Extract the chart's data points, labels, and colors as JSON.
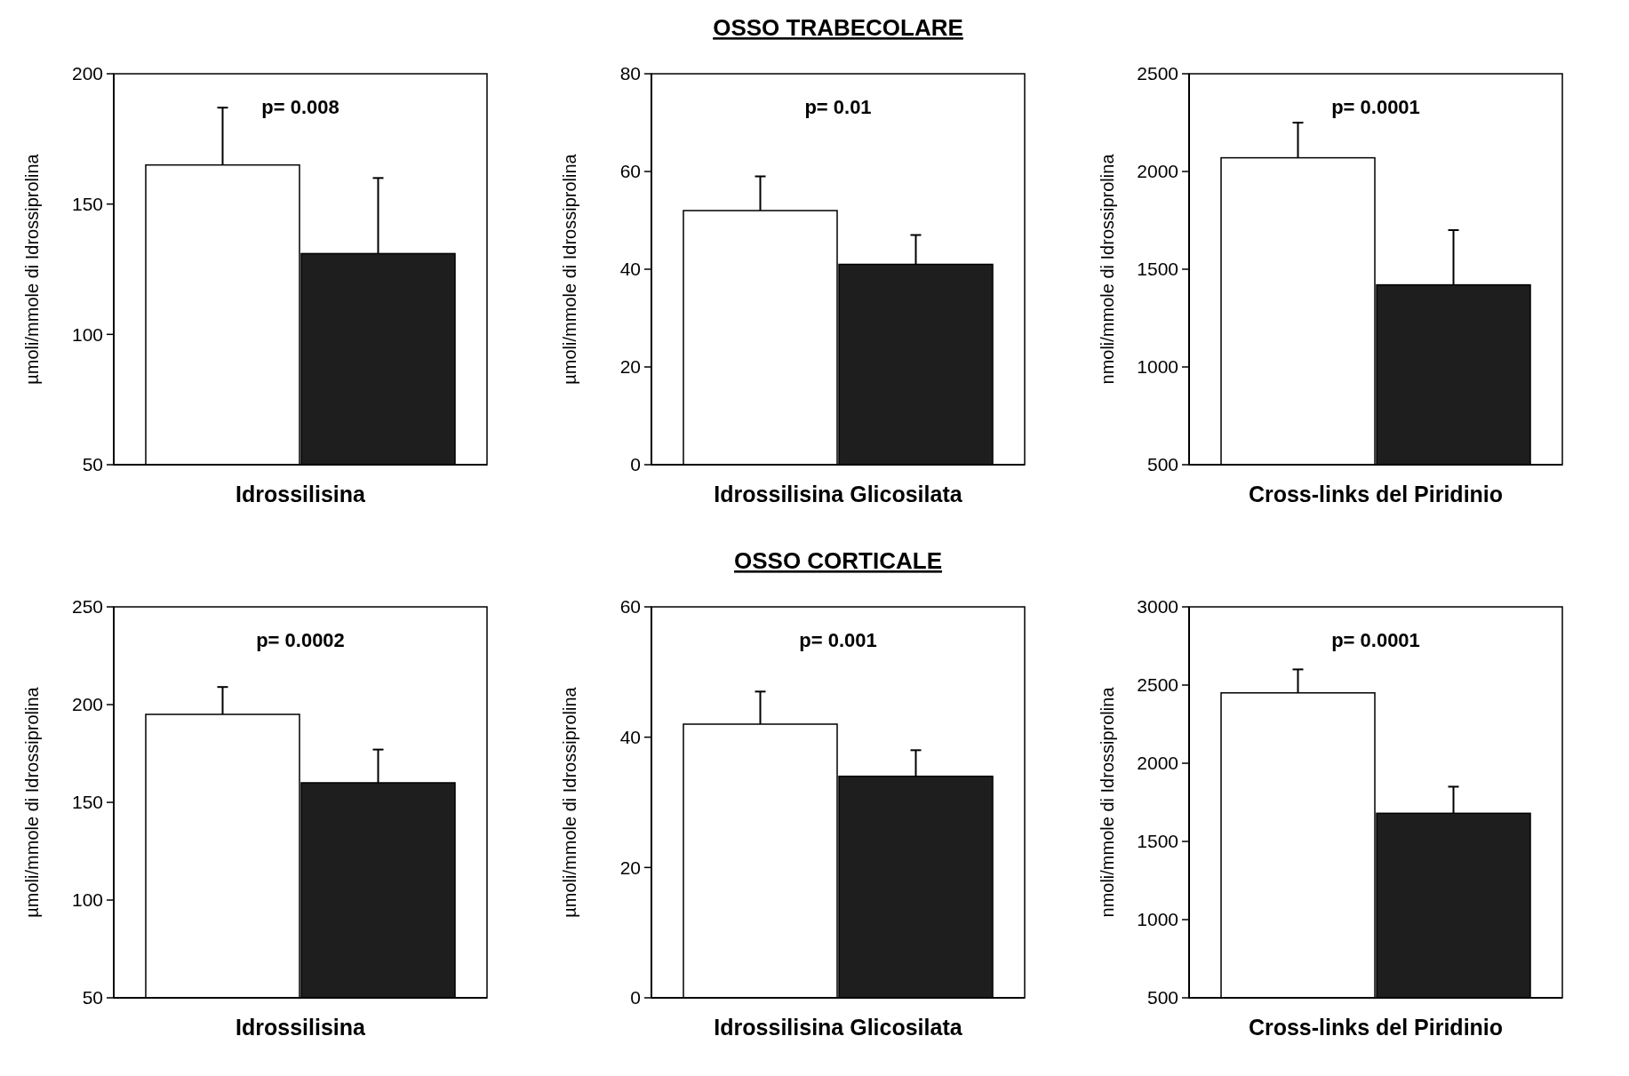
{
  "chart_data": [
    {
      "type": "bar",
      "ylabel": "µmoli/mmole di Idrossiprolina",
      "xlabel": "Idrossilisina",
      "categories": [
        null,
        null
      ],
      "ylim": [
        50,
        200
      ],
      "yticks": [
        50,
        100,
        150,
        200
      ],
      "annotations": [
        "p= 0.008"
      ],
      "values": [
        165,
        131
      ],
      "colors": [
        "#ffffff",
        "#1e1e1e"
      ],
      "errors": [
        22,
        29
      ]
    },
    {
      "type": "bar",
      "title": "OSSO TRABECOLARE",
      "ylabel": "µmoli/mmole di Idrossiprolina",
      "xlabel": "Idrossilisina Glicosilata",
      "categories": [
        null,
        null
      ],
      "ylim": [
        0,
        80
      ],
      "yticks": [
        0,
        20,
        40,
        60,
        80
      ],
      "annotations": [
        "p= 0.01"
      ],
      "values": [
        52,
        41
      ],
      "colors": [
        "#ffffff",
        "#1e1e1e"
      ],
      "errors": [
        7,
        6
      ]
    },
    {
      "type": "bar",
      "ylabel": "nmoli/mmole di Idrossiprolina",
      "xlabel": "Cross-links del Piridinio",
      "categories": [
        null,
        null
      ],
      "ylim": [
        500,
        2500
      ],
      "yticks": [
        500,
        1000,
        1500,
        2000,
        2500
      ],
      "annotations": [
        "p= 0.0001"
      ],
      "values": [
        2070,
        1420
      ],
      "colors": [
        "#ffffff",
        "#1e1e1e"
      ],
      "errors": [
        180,
        280
      ]
    },
    {
      "type": "bar",
      "ylabel": "µmoli/mmole di Idrossiprolina",
      "xlabel": "Idrossilisina",
      "categories": [
        null,
        null
      ],
      "ylim": [
        50,
        250
      ],
      "yticks": [
        50,
        100,
        150,
        200,
        250
      ],
      "annotations": [
        "p= 0.0002"
      ],
      "values": [
        195,
        160
      ],
      "colors": [
        "#ffffff",
        "#1e1e1e"
      ],
      "errors": [
        14,
        17
      ]
    },
    {
      "type": "bar",
      "title": "OSSO CORTICALE",
      "ylabel": "µmoli/mmole di Idrossiprolina",
      "xlabel": "Idrossilisina Glicosilata",
      "categories": [
        null,
        null
      ],
      "ylim": [
        0,
        60
      ],
      "yticks": [
        0,
        20,
        40,
        60
      ],
      "annotations": [
        "p= 0.001"
      ],
      "values": [
        42,
        34
      ],
      "colors": [
        "#ffffff",
        "#1e1e1e"
      ],
      "errors": [
        5,
        4
      ]
    },
    {
      "type": "bar",
      "ylabel": "nmoli/mmole di Idrossiprolina",
      "xlabel": "Cross-links del Piridinio",
      "categories": [
        null,
        null
      ],
      "ylim": [
        500,
        3000
      ],
      "yticks": [
        500,
        1000,
        1500,
        2000,
        2500,
        3000
      ],
      "annotations": [
        "p= 0.0001"
      ],
      "values": [
        2450,
        1680
      ],
      "colors": [
        "#ffffff",
        "#1e1e1e"
      ],
      "errors": [
        150,
        170
      ]
    }
  ]
}
